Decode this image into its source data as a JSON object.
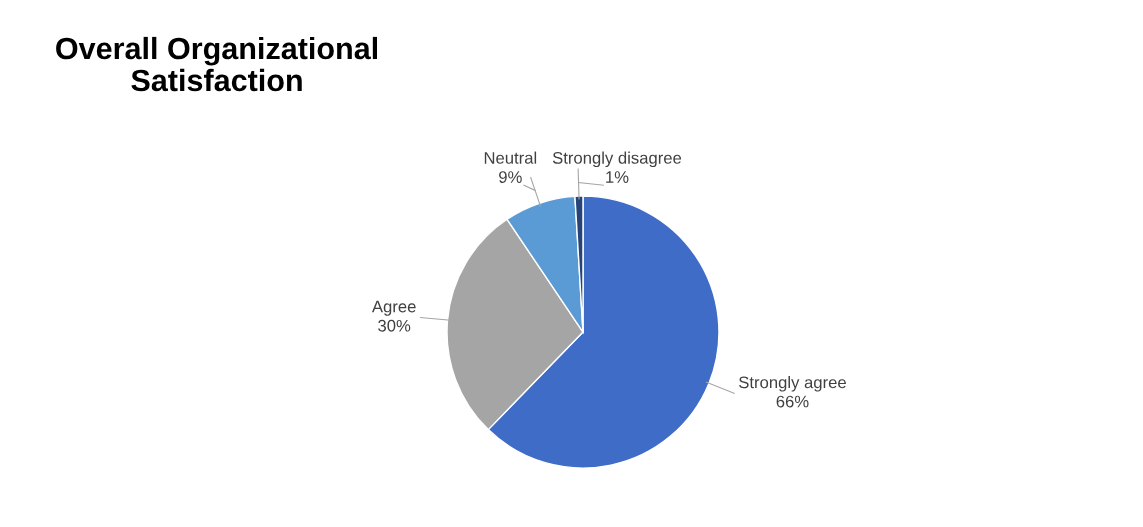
{
  "chart_data": {
    "type": "pie",
    "title": "Overall Organizational\nSatisfaction",
    "categories": [
      "Strongly agree",
      "Agree",
      "Neutral",
      "Strongly disagree"
    ],
    "values": [
      66,
      30,
      9,
      1
    ],
    "value_labels": [
      "66%",
      "30%",
      "9%",
      "1%"
    ],
    "colors": [
      "#3f6cc6",
      "#a5a5a5",
      "#5b9bd5",
      "#264478"
    ],
    "legend": false
  }
}
